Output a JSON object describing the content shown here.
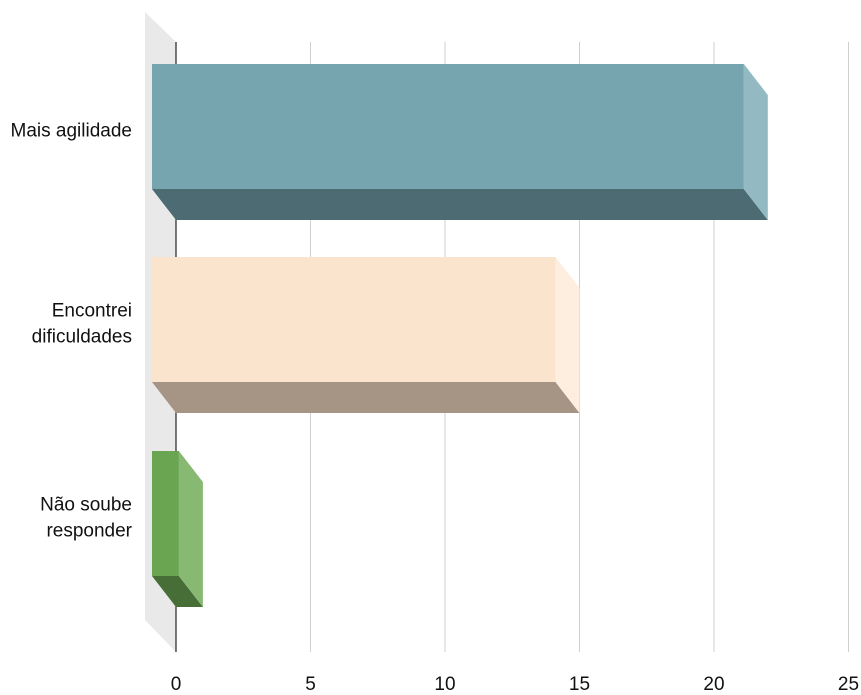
{
  "chart_data": {
    "type": "bar",
    "orientation": "horizontal",
    "style": "3d",
    "title": "",
    "xlabel": "",
    "ylabel": "",
    "categories": [
      [
        "Mais agilidade"
      ],
      [
        "Encontrei",
        "dificuldades"
      ],
      [
        "Não soube",
        "responder"
      ]
    ],
    "values": [
      22,
      15,
      1
    ],
    "xlim": [
      0,
      25
    ],
    "ticks": [
      "0",
      "5",
      "10",
      "15",
      "20",
      "25"
    ],
    "grid": true,
    "legend": "none",
    "colors": [
      {
        "front": "#76a4af",
        "side": "#93b9c2",
        "bottom": "#4d6b72"
      },
      {
        "front": "#fbe4cd",
        "side": "#fdeedf",
        "bottom": "#a69585"
      },
      {
        "front": "#6aa551",
        "side": "#87b972",
        "bottom": "#466e36"
      }
    ]
  }
}
